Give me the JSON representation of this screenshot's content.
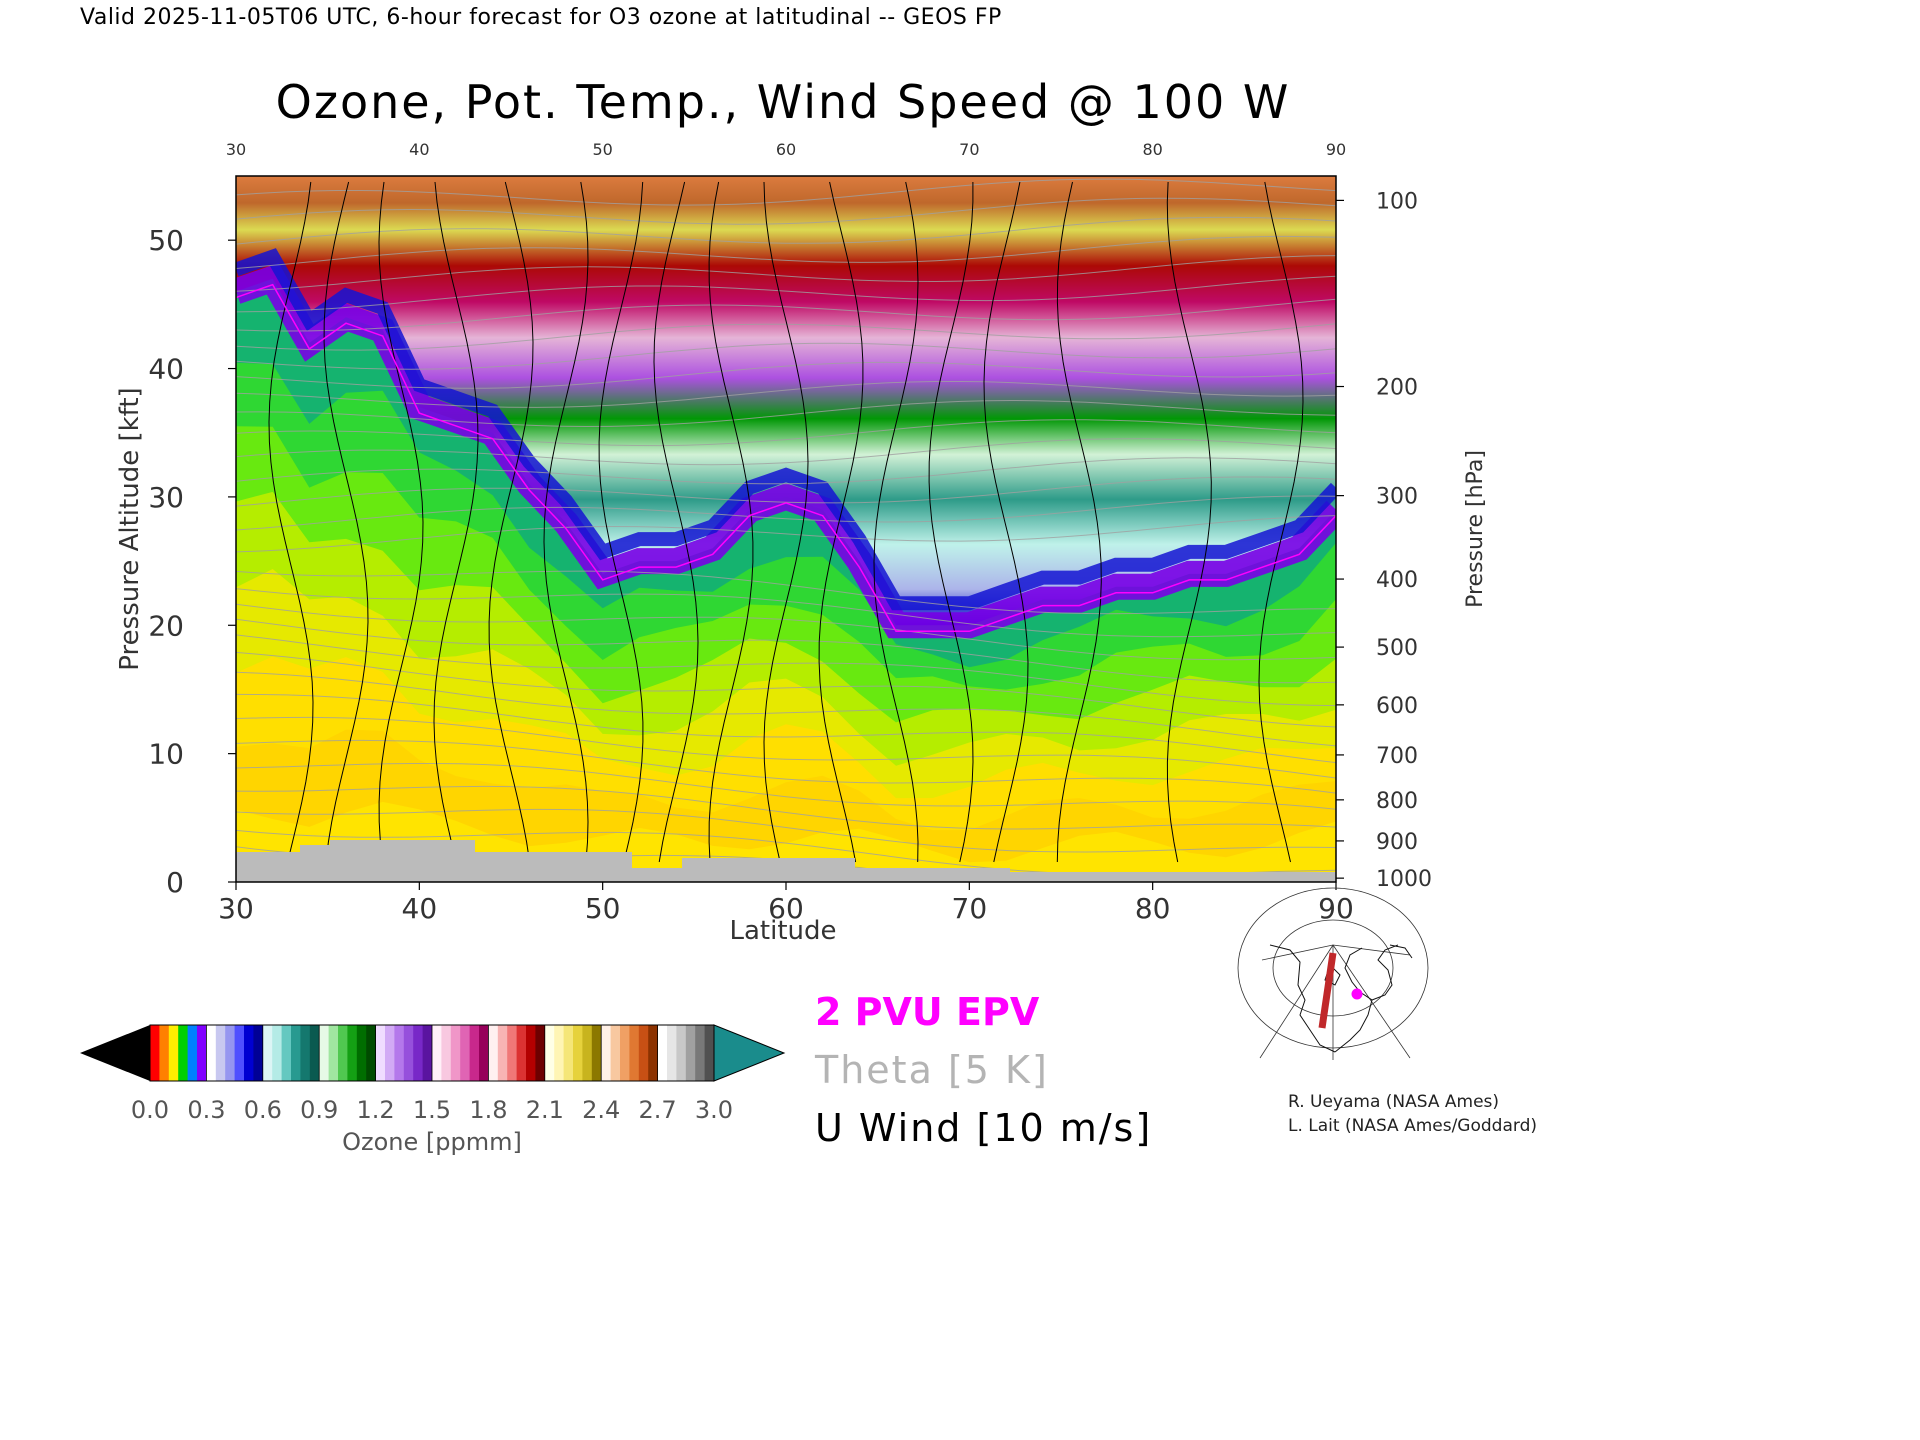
{
  "header": "Valid 2025-11-05T06 UTC, 6-hour forecast for O3 ozone at latitudinal -- GEOS FP",
  "chart_data": {
    "type": "heatmap",
    "title": "Ozone, Pot. Temp., Wind Speed @ 100 W",
    "xlabel": "Latitude",
    "ylabel": "Pressure Altitude [kft]",
    "y2label": "Pressure [hPa]",
    "xlim": [
      30,
      90
    ],
    "ylim": [
      0,
      55
    ],
    "x_ticks": [
      "30",
      "40",
      "50",
      "60",
      "70",
      "80",
      "90"
    ],
    "x_ticks_top": [
      "30",
      "40",
      "50",
      "60",
      "70",
      "80",
      "90"
    ],
    "y_ticks": [
      "0",
      "10",
      "20",
      "30",
      "40",
      "50"
    ],
    "pressure_ticks": [
      {
        "label": "100",
        "kft": 53.1
      },
      {
        "label": "200",
        "kft": 38.6
      },
      {
        "label": "300",
        "kft": 30.1
      },
      {
        "label": "400",
        "kft": 23.6
      },
      {
        "label": "500",
        "kft": 18.3
      },
      {
        "label": "600",
        "kft": 13.8
      },
      {
        "label": "700",
        "kft": 9.9
      },
      {
        "label": "800",
        "kft": 6.4
      },
      {
        "label": "900",
        "kft": 3.2
      },
      {
        "label": "1000",
        "kft": 0.3
      }
    ],
    "tropopause_kft": [
      [
        30,
        46
      ],
      [
        32,
        47
      ],
      [
        34,
        42
      ],
      [
        36,
        44
      ],
      [
        38,
        43
      ],
      [
        40,
        37
      ],
      [
        42,
        36
      ],
      [
        44,
        35
      ],
      [
        46,
        31
      ],
      [
        48,
        28
      ],
      [
        50,
        24
      ],
      [
        52,
        25
      ],
      [
        54,
        25
      ],
      [
        56,
        26
      ],
      [
        58,
        29
      ],
      [
        60,
        30
      ],
      [
        62,
        29
      ],
      [
        64,
        25
      ],
      [
        66,
        20
      ],
      [
        68,
        20
      ],
      [
        70,
        20
      ],
      [
        72,
        21
      ],
      [
        74,
        22
      ],
      [
        76,
        22
      ],
      [
        78,
        23
      ],
      [
        80,
        23
      ],
      [
        82,
        24
      ],
      [
        84,
        24
      ],
      [
        86,
        25
      ],
      [
        88,
        26
      ],
      [
        90,
        29
      ]
    ],
    "colorbar": {
      "label": "Ozone [ppmm]",
      "min": 0.0,
      "max": 3.0,
      "ticks": [
        "0.0",
        "0.3",
        "0.6",
        "0.9",
        "1.2",
        "1.5",
        "1.8",
        "2.1",
        "2.4",
        "2.7",
        "3.0"
      ],
      "under_color": "#000000",
      "over_color": "#1a8c8c"
    },
    "legend": [
      {
        "label": "2 PVU EPV",
        "color": "#ff00ff"
      },
      {
        "label": "Theta [5 K]",
        "color": "#b4b4b4"
      },
      {
        "label": "U Wind [10 m/s]",
        "color": "#000000"
      }
    ]
  },
  "credits": [
    "R. Ueyama (NASA Ames)",
    "L. Lait (NASA Ames/Goddard)"
  ],
  "map": {
    "track_color": "#c0282a",
    "marker_color": "#ff00ff"
  }
}
